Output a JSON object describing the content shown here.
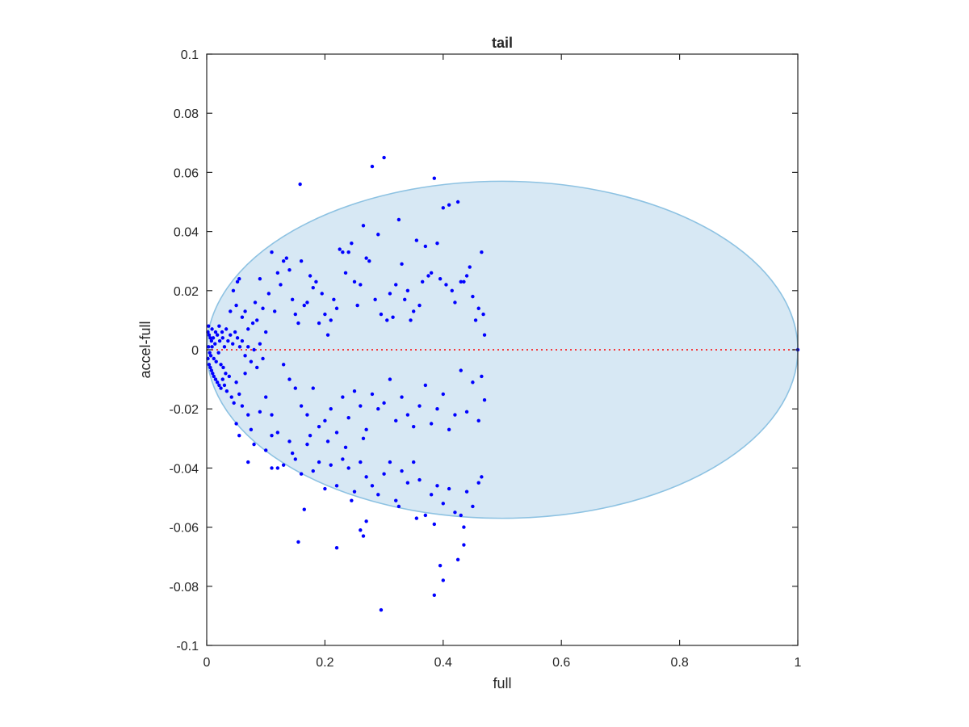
{
  "chart_data": {
    "type": "scatter",
    "title": "tail",
    "xlabel": "full",
    "ylabel": "accel-full",
    "xlim": [
      0,
      1
    ],
    "ylim": [
      -0.1,
      0.1
    ],
    "grid": false,
    "x_ticks": [
      0,
      0.2,
      0.4,
      0.6,
      0.8,
      1
    ],
    "x_tick_labels": [
      "0",
      "0.2",
      "0.4",
      "0.6",
      "0.8",
      "1"
    ],
    "y_ticks": [
      -0.1,
      -0.08,
      -0.06,
      -0.04,
      -0.02,
      0,
      0.02,
      0.04,
      0.06,
      0.08,
      0.1
    ],
    "y_tick_labels": [
      "-0.1",
      "-0.08",
      "-0.06",
      "-0.04",
      "-0.02",
      "0",
      "0.02",
      "0.04",
      "0.06",
      "0.08",
      "0.1"
    ],
    "colors": {
      "points": "#0000ff",
      "ellipse_fill": "#d7e8f4",
      "ellipse_edge": "#8dc2e2",
      "zero_line": "#ff0000",
      "axes": "#262626"
    },
    "ellipse": {
      "center": [
        0.5,
        0
      ],
      "semi_axis_x": 0.5,
      "semi_axis_y": 0.057
    },
    "reference_line": {
      "y": 0,
      "x_range": [
        0,
        1
      ],
      "style": "dotted"
    },
    "points": [
      [
        0.002,
        0.006
      ],
      [
        0.004,
        0.005
      ],
      [
        0.006,
        0.004
      ],
      [
        0.008,
        0.003
      ],
      [
        0.003,
        0.001
      ],
      [
        0.005,
        -0.001
      ],
      [
        0.007,
        -0.002
      ],
      [
        0.009,
        0.001
      ],
      [
        0.011,
        0.004
      ],
      [
        0.012,
        -0.003
      ],
      [
        0.014,
        0.002
      ],
      [
        0.016,
        -0.004
      ],
      [
        0.018,
        0.005
      ],
      [
        0.02,
        -0.001
      ],
      [
        0.022,
        0.003
      ],
      [
        0.024,
        -0.005
      ],
      [
        0.026,
        0.006
      ],
      [
        0.028,
        -0.006
      ],
      [
        0.03,
        0.001
      ],
      [
        0.032,
        -0.008
      ],
      [
        0.002,
        -0.003
      ],
      [
        0.004,
        -0.005
      ],
      [
        0.006,
        -0.006
      ],
      [
        0.008,
        -0.007
      ],
      [
        0.01,
        -0.008
      ],
      [
        0.012,
        -0.009
      ],
      [
        0.015,
        -0.01
      ],
      [
        0.018,
        -0.011
      ],
      [
        0.021,
        -0.012
      ],
      [
        0.024,
        -0.013
      ],
      [
        0.027,
        -0.01
      ],
      [
        0.03,
        -0.012
      ],
      [
        0.034,
        -0.014
      ],
      [
        0.038,
        -0.009
      ],
      [
        0.042,
        -0.016
      ],
      [
        0.046,
        -0.018
      ],
      [
        0.05,
        -0.011
      ],
      [
        0.055,
        -0.015
      ],
      [
        0.06,
        -0.019
      ],
      [
        0.065,
        -0.008
      ],
      [
        0.003,
        0.008
      ],
      [
        0.009,
        0.007
      ],
      [
        0.015,
        0.006
      ],
      [
        0.021,
        0.008
      ],
      [
        0.027,
        0.004
      ],
      [
        0.033,
        0.007
      ],
      [
        0.036,
        0.003
      ],
      [
        0.04,
        0.005
      ],
      [
        0.044,
        0.002
      ],
      [
        0.048,
        0.006
      ],
      [
        0.052,
        0.004
      ],
      [
        0.056,
        0.001
      ],
      [
        0.06,
        0.003
      ],
      [
        0.065,
        -0.002
      ],
      [
        0.07,
        0.001
      ],
      [
        0.075,
        -0.004
      ],
      [
        0.08,
        0.0
      ],
      [
        0.085,
        -0.006
      ],
      [
        0.09,
        0.002
      ],
      [
        0.095,
        -0.003
      ],
      [
        0.04,
        0.013
      ],
      [
        0.045,
        0.02
      ],
      [
        0.05,
        0.015
      ],
      [
        0.052,
        0.023
      ],
      [
        0.055,
        0.024
      ],
      [
        0.06,
        0.011
      ],
      [
        0.065,
        0.013
      ],
      [
        0.07,
        0.007
      ],
      [
        0.078,
        0.009
      ],
      [
        0.082,
        0.016
      ],
      [
        0.085,
        0.01
      ],
      [
        0.09,
        0.024
      ],
      [
        0.095,
        0.014
      ],
      [
        0.1,
        0.006
      ],
      [
        0.105,
        0.019
      ],
      [
        0.11,
        0.033
      ],
      [
        0.115,
        0.013
      ],
      [
        0.12,
        0.026
      ],
      [
        0.125,
        0.022
      ],
      [
        0.13,
        0.03
      ],
      [
        0.135,
        0.031
      ],
      [
        0.14,
        0.027
      ],
      [
        0.145,
        0.017
      ],
      [
        0.15,
        0.012
      ],
      [
        0.155,
        0.009
      ],
      [
        0.158,
        0.056
      ],
      [
        0.16,
        0.03
      ],
      [
        0.165,
        0.015
      ],
      [
        0.17,
        0.016
      ],
      [
        0.175,
        0.025
      ],
      [
        0.18,
        0.021
      ],
      [
        0.185,
        0.023
      ],
      [
        0.19,
        0.009
      ],
      [
        0.195,
        0.019
      ],
      [
        0.2,
        0.012
      ],
      [
        0.205,
        0.005
      ],
      [
        0.21,
        0.01
      ],
      [
        0.215,
        0.017
      ],
      [
        0.22,
        0.014
      ],
      [
        0.225,
        0.034
      ],
      [
        0.23,
        0.033
      ],
      [
        0.235,
        0.026
      ],
      [
        0.24,
        0.033
      ],
      [
        0.245,
        0.036
      ],
      [
        0.25,
        0.023
      ],
      [
        0.255,
        0.015
      ],
      [
        0.26,
        0.022
      ],
      [
        0.265,
        0.042
      ],
      [
        0.27,
        0.031
      ],
      [
        0.275,
        0.03
      ],
      [
        0.28,
        0.062
      ],
      [
        0.285,
        0.017
      ],
      [
        0.29,
        0.039
      ],
      [
        0.295,
        0.012
      ],
      [
        0.3,
        0.065
      ],
      [
        0.305,
        0.01
      ],
      [
        0.31,
        0.019
      ],
      [
        0.315,
        0.011
      ],
      [
        0.32,
        0.022
      ],
      [
        0.325,
        0.044
      ],
      [
        0.33,
        0.029
      ],
      [
        0.335,
        0.017
      ],
      [
        0.34,
        0.02
      ],
      [
        0.345,
        0.01
      ],
      [
        0.35,
        0.013
      ],
      [
        0.355,
        0.037
      ],
      [
        0.36,
        0.015
      ],
      [
        0.365,
        0.023
      ],
      [
        0.37,
        0.035
      ],
      [
        0.375,
        0.025
      ],
      [
        0.38,
        0.026
      ],
      [
        0.385,
        0.058
      ],
      [
        0.39,
        0.036
      ],
      [
        0.395,
        0.024
      ],
      [
        0.4,
        0.048
      ],
      [
        0.405,
        0.022
      ],
      [
        0.41,
        0.049
      ],
      [
        0.415,
        0.02
      ],
      [
        0.42,
        0.016
      ],
      [
        0.425,
        0.05
      ],
      [
        0.43,
        0.023
      ],
      [
        0.435,
        0.023
      ],
      [
        0.44,
        0.025
      ],
      [
        0.445,
        0.028
      ],
      [
        0.45,
        0.018
      ],
      [
        0.455,
        0.01
      ],
      [
        0.46,
        0.014
      ],
      [
        0.465,
        0.033
      ],
      [
        0.468,
        0.012
      ],
      [
        0.47,
        0.005
      ],
      [
        0.13,
        -0.005
      ],
      [
        0.14,
        -0.01
      ],
      [
        0.15,
        -0.013
      ],
      [
        0.16,
        -0.019
      ],
      [
        0.17,
        -0.022
      ],
      [
        0.18,
        -0.013
      ],
      [
        0.19,
        -0.026
      ],
      [
        0.2,
        -0.024
      ],
      [
        0.21,
        -0.02
      ],
      [
        0.22,
        -0.028
      ],
      [
        0.23,
        -0.016
      ],
      [
        0.24,
        -0.023
      ],
      [
        0.25,
        -0.014
      ],
      [
        0.26,
        -0.019
      ],
      [
        0.27,
        -0.027
      ],
      [
        0.28,
        -0.015
      ],
      [
        0.29,
        -0.02
      ],
      [
        0.3,
        -0.018
      ],
      [
        0.31,
        -0.01
      ],
      [
        0.32,
        -0.024
      ],
      [
        0.33,
        -0.016
      ],
      [
        0.34,
        -0.022
      ],
      [
        0.35,
        -0.026
      ],
      [
        0.36,
        -0.019
      ],
      [
        0.37,
        -0.012
      ],
      [
        0.38,
        -0.025
      ],
      [
        0.39,
        -0.02
      ],
      [
        0.4,
        -0.015
      ],
      [
        0.41,
        -0.027
      ],
      [
        0.42,
        -0.022
      ],
      [
        0.43,
        -0.007
      ],
      [
        0.44,
        -0.021
      ],
      [
        0.45,
        -0.011
      ],
      [
        0.46,
        -0.024
      ],
      [
        0.465,
        -0.009
      ],
      [
        0.47,
        -0.017
      ],
      [
        0.1,
        -0.016
      ],
      [
        0.11,
        -0.022
      ],
      [
        0.12,
        -0.028
      ],
      [
        0.09,
        -0.021
      ],
      [
        0.05,
        -0.025
      ],
      [
        0.055,
        -0.029
      ],
      [
        0.07,
        -0.022
      ],
      [
        0.075,
        -0.027
      ],
      [
        0.08,
        -0.032
      ],
      [
        0.1,
        -0.034
      ],
      [
        0.11,
        -0.04
      ],
      [
        0.12,
        -0.04
      ],
      [
        0.13,
        -0.039
      ],
      [
        0.14,
        -0.031
      ],
      [
        0.15,
        -0.037
      ],
      [
        0.16,
        -0.042
      ],
      [
        0.17,
        -0.032
      ],
      [
        0.18,
        -0.041
      ],
      [
        0.19,
        -0.038
      ],
      [
        0.2,
        -0.047
      ],
      [
        0.21,
        -0.039
      ],
      [
        0.22,
        -0.046
      ],
      [
        0.23,
        -0.037
      ],
      [
        0.24,
        -0.04
      ],
      [
        0.25,
        -0.048
      ],
      [
        0.26,
        -0.038
      ],
      [
        0.27,
        -0.043
      ],
      [
        0.28,
        -0.046
      ],
      [
        0.29,
        -0.049
      ],
      [
        0.3,
        -0.042
      ],
      [
        0.31,
        -0.038
      ],
      [
        0.32,
        -0.051
      ],
      [
        0.33,
        -0.041
      ],
      [
        0.34,
        -0.045
      ],
      [
        0.35,
        -0.038
      ],
      [
        0.36,
        -0.044
      ],
      [
        0.37,
        -0.056
      ],
      [
        0.38,
        -0.049
      ],
      [
        0.39,
        -0.046
      ],
      [
        0.4,
        -0.052
      ],
      [
        0.41,
        -0.047
      ],
      [
        0.42,
        -0.055
      ],
      [
        0.43,
        -0.056
      ],
      [
        0.44,
        -0.048
      ],
      [
        0.45,
        -0.053
      ],
      [
        0.46,
        -0.045
      ],
      [
        0.465,
        -0.043
      ],
      [
        0.07,
        -0.038
      ],
      [
        0.11,
        -0.029
      ],
      [
        0.145,
        -0.035
      ],
      [
        0.175,
        -0.029
      ],
      [
        0.205,
        -0.031
      ],
      [
        0.235,
        -0.033
      ],
      [
        0.265,
        -0.03
      ],
      [
        0.155,
        -0.065
      ],
      [
        0.165,
        -0.054
      ],
      [
        0.22,
        -0.067
      ],
      [
        0.26,
        -0.061
      ],
      [
        0.265,
        -0.063
      ],
      [
        0.27,
        -0.058
      ],
      [
        0.295,
        -0.088
      ],
      [
        0.385,
        -0.083
      ],
      [
        0.395,
        -0.073
      ],
      [
        0.4,
        -0.078
      ],
      [
        0.425,
        -0.071
      ],
      [
        0.435,
        -0.066
      ],
      [
        0.435,
        -0.06
      ],
      [
        0.385,
        -0.059
      ],
      [
        0.355,
        -0.057
      ],
      [
        0.325,
        -0.053
      ],
      [
        0.245,
        -0.051
      ],
      [
        1.0,
        0.0
      ]
    ]
  }
}
